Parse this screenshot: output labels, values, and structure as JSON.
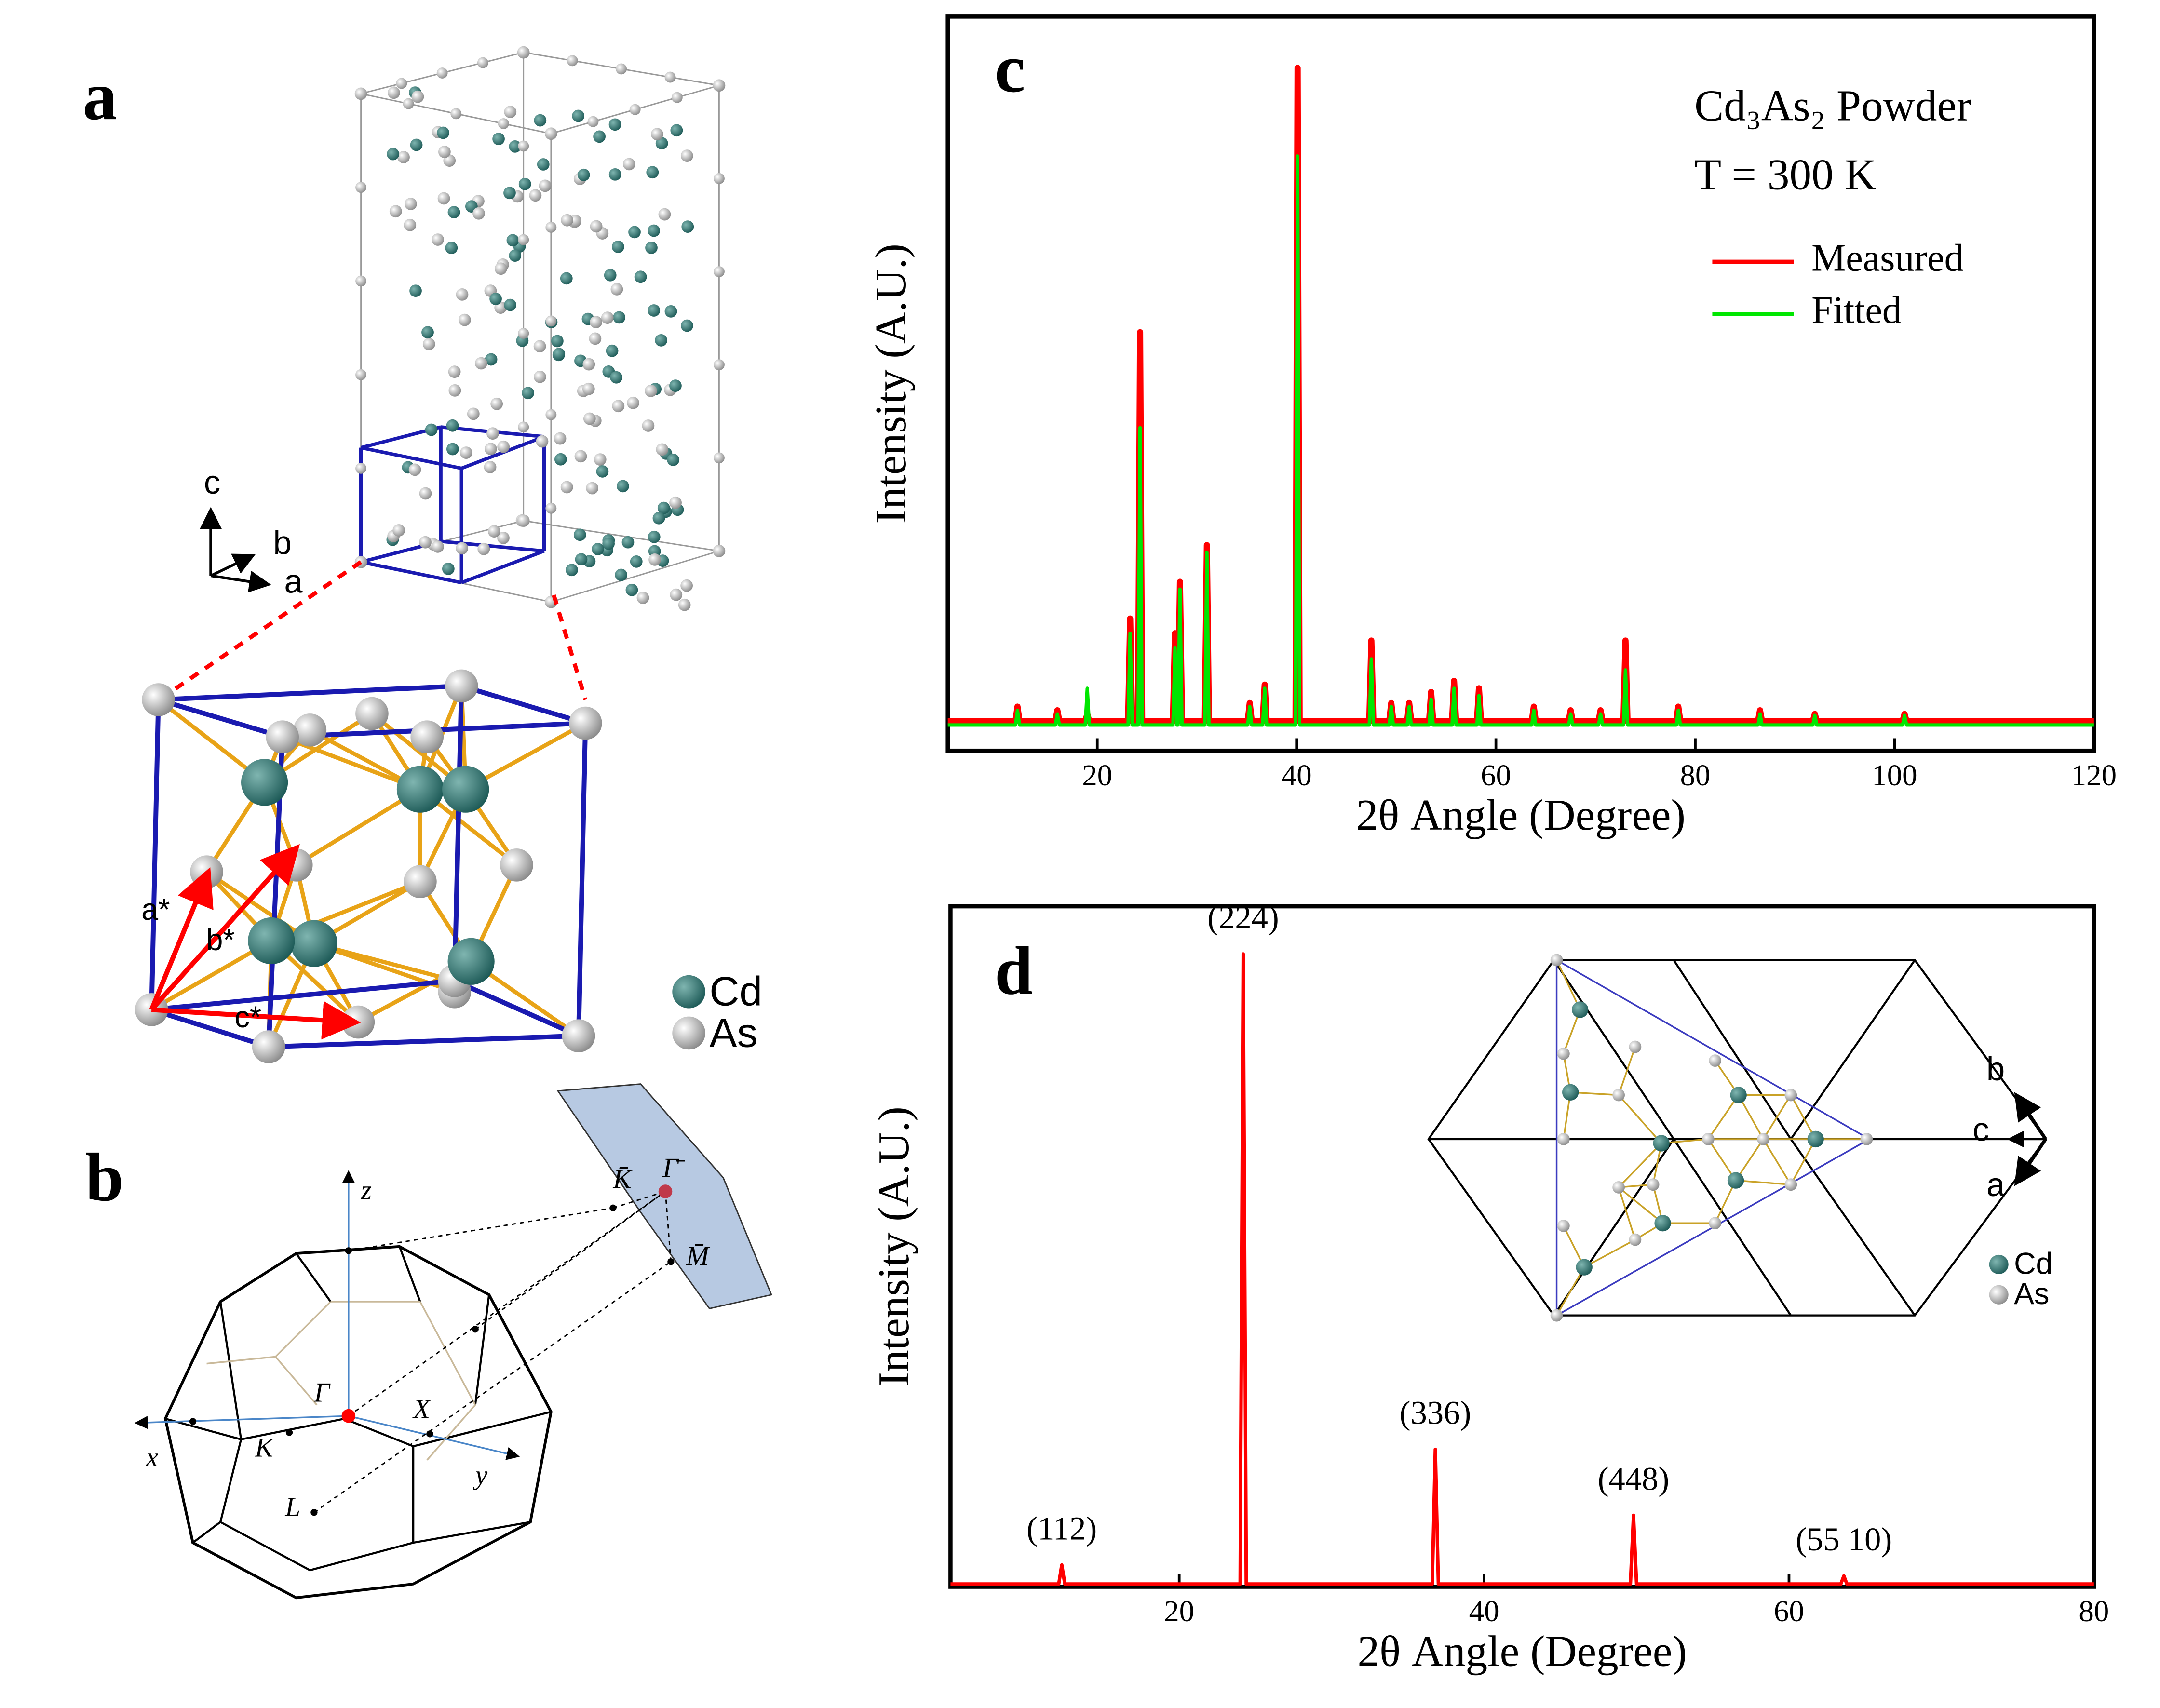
{
  "chart_data": [
    {
      "type": "line",
      "panel_label": "c",
      "x": [
        5,
        11.8,
        12,
        12.2,
        15.8,
        16,
        16.2,
        18.8,
        19,
        19.2,
        23.1,
        23.3,
        23.5,
        24.1,
        24.3,
        24.5,
        27.6,
        27.8,
        28.0,
        28.1,
        28.3,
        28.5,
        30.8,
        31,
        31.2,
        35.1,
        35.3,
        35.5,
        36.6,
        36.8,
        37.0,
        39.9,
        40.1,
        40.3,
        47.3,
        47.5,
        47.7,
        49.3,
        49.5,
        49.7,
        51.1,
        51.3,
        51.5,
        53.3,
        53.5,
        53.7,
        55.6,
        55.8,
        56.0,
        58.1,
        58.3,
        58.5,
        63.6,
        63.8,
        64.0,
        67.3,
        67.5,
        67.7,
        70.3,
        70.5,
        70.7,
        72.8,
        73,
        73.2,
        78.1,
        78.3,
        78.5,
        86.3,
        86.5,
        86.7,
        91.8,
        92,
        92.2,
        100.8,
        101,
        101.2,
        120
      ],
      "series": [
        {
          "name": "Measured",
          "color": "#ff0000",
          "values": [
            4,
            4,
            6,
            4,
            4,
            5.5,
            4,
            4,
            5,
            4,
            4,
            18,
            4,
            4,
            57,
            4,
            4,
            16,
            4,
            4,
            23,
            4,
            4,
            28,
            4,
            4,
            6.5,
            4,
            4,
            9,
            4,
            4,
            93,
            4,
            4,
            15,
            4,
            4,
            6.5,
            4,
            4,
            6.5,
            4,
            4,
            8,
            4,
            4,
            9.5,
            4,
            4,
            8.5,
            4,
            4,
            6,
            4,
            4,
            5.5,
            4,
            4,
            5.5,
            4,
            4,
            15,
            4,
            4,
            6,
            4,
            4,
            5.5,
            4,
            4,
            5,
            4,
            4,
            5,
            4,
            4
          ]
        },
        {
          "name": "Fitted",
          "color": "#00e600",
          "values": [
            3.5,
            3.5,
            5.5,
            3.5,
            3.5,
            5,
            3.5,
            3.5,
            8.5,
            3.5,
            3.5,
            16,
            3.5,
            3.5,
            44,
            3.5,
            3.5,
            14,
            3.5,
            3.5,
            22,
            3.5,
            3.5,
            27,
            3.5,
            3.5,
            6,
            3.5,
            3.5,
            8.5,
            3.5,
            3.5,
            81,
            3.5,
            3.5,
            12.5,
            3.5,
            3.5,
            6,
            3.5,
            3.5,
            6,
            3.5,
            3.5,
            7,
            3.5,
            3.5,
            8.5,
            3.5,
            3.5,
            7.5,
            3.5,
            3.5,
            5.5,
            3.5,
            3.5,
            5,
            3.5,
            3.5,
            5,
            3.5,
            3.5,
            11,
            3.5,
            3.5,
            5.5,
            3.5,
            3.5,
            5,
            3.5,
            3.5,
            4.8,
            3.5,
            3.5,
            4.8,
            3.5,
            3.5
          ]
        }
      ],
      "xlim": [
        5,
        120
      ],
      "xticks": [
        20,
        40,
        60,
        80,
        100,
        120
      ],
      "ylim": [
        0,
        100
      ],
      "xlabel": "2θ Angle (Degree)",
      "ylabel": "Intensity (A.U.)",
      "annotations": [
        "Cd₃As₂ Powder",
        "T = 300 K"
      ]
    },
    {
      "type": "line",
      "panel_label": "d",
      "x": [
        5,
        12.1,
        12.3,
        12.5,
        24.0,
        24.2,
        24.4,
        36.6,
        36.8,
        37.0,
        49.6,
        49.8,
        50.0,
        63.4,
        63.6,
        63.8,
        80
      ],
      "series": [
        {
          "color": "#ff0000",
          "values": [
            0.4,
            0.4,
            3.2,
            0.4,
            0.4,
            93,
            0.4,
            0.4,
            20.2,
            0.4,
            0.4,
            10.5,
            0.4,
            0.4,
            1.6,
            0.4,
            0.4
          ]
        }
      ],
      "xlim": [
        5,
        80
      ],
      "xticks": [
        20,
        40,
        60,
        80
      ],
      "ylim": [
        0,
        100
      ],
      "xlabel": "2θ Angle (Degree)",
      "ylabel": "Intensity (A.U.)",
      "peak_labels": [
        {
          "text": "(112)",
          "x": 12.3
        },
        {
          "text": "(224)",
          "x": 24.2
        },
        {
          "text": "(336)",
          "x": 36.8
        },
        {
          "text": "(448)",
          "x": 49.8
        },
        {
          "text": "(55 10)",
          "x": 63.6
        }
      ]
    }
  ],
  "diagrams": {
    "a": {
      "panel_label": "a",
      "axes": [
        "c",
        "b",
        "a"
      ],
      "vectors": [
        "a*",
        "b*",
        "c*"
      ],
      "legend": [
        "Cd",
        "As"
      ]
    },
    "b": {
      "panel_label": "b",
      "axes": [
        "z",
        "x",
        "y"
      ],
      "points": [
        "Γ",
        "K",
        "X",
        "L"
      ],
      "surface_points": [
        "K̄",
        "Γ̄",
        "M̄"
      ]
    },
    "d_inset": {
      "axes": [
        "b",
        "c",
        "a"
      ],
      "legend": [
        "Cd",
        "As"
      ]
    }
  }
}
